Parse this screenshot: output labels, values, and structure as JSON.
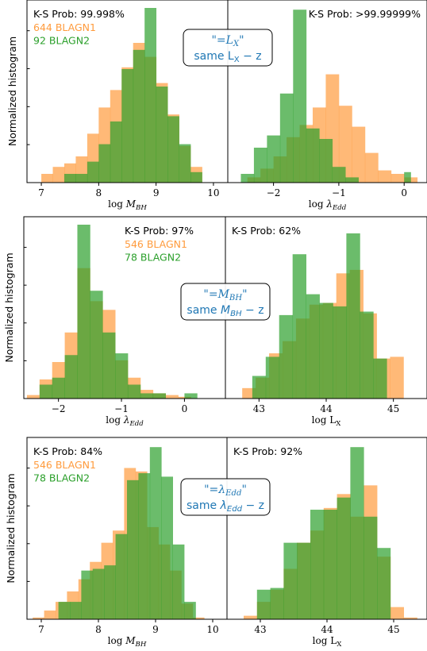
{
  "ylabel": "Normalized histogram",
  "colors": {
    "blagn1": "#ff9b3d",
    "blagn2": "#2ca02c",
    "overlap": "#a3a026",
    "axis": "#000000",
    "annot": "#1f77b4"
  },
  "chart_data": [
    {
      "type": "bar",
      "row": 1,
      "col": 1,
      "xlabel": "log M_BH",
      "xlim": [
        6.75,
        10.25
      ],
      "xticks": [
        7,
        8,
        9,
        10
      ],
      "ks_text": "K-S Prob: 99.998%",
      "ks_align": "left",
      "legend": [
        {
          "label": "644 BLAGN1",
          "color": "#ff9b3d"
        },
        {
          "label": "92 BLAGN2",
          "color": "#2ca02c"
        }
      ],
      "ylim": [
        0,
        1.0
      ],
      "series": [
        {
          "name": "BLAGN1",
          "color": "#ff9b3d",
          "bins": [
            6.8,
            7.0,
            7.2,
            7.4,
            7.6,
            7.8,
            8.0,
            8.2,
            8.4,
            8.6,
            8.8,
            9.0,
            9.2,
            9.4,
            9.6,
            9.8,
            10.0
          ],
          "values": [
            0.0,
            0.05,
            0.09,
            0.11,
            0.15,
            0.28,
            0.43,
            0.53,
            0.66,
            0.8,
            0.72,
            0.57,
            0.39,
            0.21,
            0.09,
            0.0
          ]
        },
        {
          "name": "BLAGN2",
          "color": "#2ca02c",
          "bins": [
            7.2,
            7.4,
            7.6,
            7.8,
            8.0,
            8.2,
            8.4,
            8.6,
            8.8,
            9.0,
            9.2,
            9.4,
            9.6,
            9.8
          ],
          "values": [
            0.0,
            0.05,
            0.05,
            0.12,
            0.22,
            0.35,
            0.65,
            0.76,
            1.0,
            0.55,
            0.38,
            0.22,
            0.06
          ]
        }
      ]
    },
    {
      "type": "bar",
      "row": 1,
      "col": 2,
      "xlabel": "log λ_Edd",
      "xlim": [
        -2.7,
        0.35
      ],
      "xticks": [
        -2,
        -1,
        0
      ],
      "ks_text": "K-S Prob: >99.99999%",
      "ks_align": "right",
      "legend": [],
      "ylim": [
        0,
        1.0
      ],
      "series": [
        {
          "name": "BLAGN1",
          "color": "#ff9b3d",
          "bins": [
            -2.6,
            -2.4,
            -2.2,
            -2.0,
            -1.8,
            -1.6,
            -1.4,
            -1.2,
            -1.0,
            -0.8,
            -0.6,
            -0.4,
            -0.2,
            0.0,
            0.2
          ],
          "values": [
            0.0,
            0.03,
            0.08,
            0.15,
            0.26,
            0.33,
            0.43,
            0.62,
            0.44,
            0.32,
            0.17,
            0.07,
            0.05,
            0.03
          ]
        },
        {
          "name": "BLAGN2",
          "color": "#2ca02c",
          "bins": [
            -2.5,
            -2.3,
            -2.1,
            -1.9,
            -1.7,
            -1.5,
            -1.3,
            -1.1,
            -0.9,
            -0.7,
            0.0,
            0.1
          ],
          "values": [
            0.05,
            0.2,
            0.27,
            0.51,
            0.99,
            0.31,
            0.25,
            0.09,
            0.03,
            0.0,
            0.06
          ]
        }
      ]
    },
    {
      "type": "bar",
      "row": 2,
      "col": 1,
      "xlabel": "log λ_Edd",
      "xlim": [
        -2.55,
        0.65
      ],
      "xticks": [
        -2,
        -1,
        0
      ],
      "ks_text": "K-S Prob: 97%",
      "ks_align": "leftmid",
      "legend": [
        {
          "label": "546 BLAGN1",
          "color": "#ff9b3d"
        },
        {
          "label": "78 BLAGN2",
          "color": "#2ca02c"
        }
      ],
      "ylim": [
        0,
        1.0
      ],
      "series": [
        {
          "name": "BLAGN1",
          "color": "#ff9b3d",
          "bins": [
            -2.5,
            -2.3,
            -2.1,
            -1.9,
            -1.7,
            -1.5,
            -1.3,
            -1.1,
            -0.9,
            -0.7,
            -0.5,
            -0.3,
            -0.1,
            0.1,
            0.3
          ],
          "values": [
            0.02,
            0.11,
            0.21,
            0.38,
            0.75,
            0.56,
            0.51,
            0.22,
            0.12,
            0.05,
            0.03,
            0.02,
            0.01,
            0.0
          ]
        },
        {
          "name": "BLAGN2",
          "color": "#2ca02c",
          "bins": [
            -2.3,
            -2.1,
            -1.9,
            -1.7,
            -1.5,
            -1.3,
            -1.1,
            -0.9,
            -0.7,
            -0.5,
            -0.3,
            0.0,
            0.2
          ],
          "values": [
            0.08,
            0.12,
            0.25,
            1.0,
            0.62,
            0.38,
            0.26,
            0.08,
            0.03,
            0.03,
            0.0,
            0.03
          ]
        }
      ]
    },
    {
      "type": "bar",
      "row": 2,
      "col": 2,
      "xlabel": "log L_X",
      "xlim": [
        42.5,
        45.5
      ],
      "xticks": [
        43,
        44,
        45
      ],
      "ks_text": "K-S Prob: 62%",
      "ks_align": "left",
      "legend": [],
      "ylim": [
        0,
        1.0
      ],
      "series": [
        {
          "name": "BLAGN1",
          "color": "#ff9b3d",
          "bins": [
            42.75,
            42.95,
            43.15,
            43.35,
            43.55,
            43.75,
            43.95,
            44.15,
            44.35,
            44.55,
            44.75,
            44.95,
            45.15
          ],
          "values": [
            0.06,
            0.12,
            0.26,
            0.33,
            0.46,
            0.54,
            0.55,
            0.72,
            0.74,
            0.49,
            0.23,
            0.24
          ]
        },
        {
          "name": "BLAGN2",
          "color": "#2ca02c",
          "bins": [
            42.9,
            43.1,
            43.3,
            43.5,
            43.7,
            43.9,
            44.1,
            44.3,
            44.5,
            44.7,
            44.9
          ],
          "values": [
            0.13,
            0.24,
            0.48,
            0.83,
            0.6,
            0.55,
            0.53,
            0.95,
            0.5,
            0.23
          ]
        }
      ]
    },
    {
      "type": "bar",
      "row": 3,
      "col": 1,
      "xlabel": "log M_BH",
      "xlim": [
        6.75,
        10.25
      ],
      "xticks": [
        7,
        8,
        9,
        10
      ],
      "ks_text": "K-S Prob: 84%",
      "ks_align": "left",
      "legend": [
        {
          "label": "546 BLAGN1",
          "color": "#ff9b3d"
        },
        {
          "label": "78 BLAGN2",
          "color": "#2ca02c"
        }
      ],
      "ylim": [
        0,
        1.0
      ],
      "series": [
        {
          "name": "BLAGN1",
          "color": "#ff9b3d",
          "bins": [
            6.85,
            7.05,
            7.25,
            7.45,
            7.65,
            7.85,
            8.05,
            8.25,
            8.45,
            8.65,
            8.85,
            9.05,
            9.25,
            9.45,
            9.65,
            9.85,
            10.05
          ],
          "values": [
            0.01,
            0.05,
            0.1,
            0.16,
            0.23,
            0.33,
            0.44,
            0.51,
            0.87,
            0.85,
            0.53,
            0.43,
            0.28,
            0.09,
            0.01,
            0.0
          ]
        },
        {
          "name": "BLAGN2",
          "color": "#2ca02c",
          "bins": [
            7.3,
            7.5,
            7.7,
            7.9,
            8.1,
            8.3,
            8.5,
            8.7,
            8.9,
            9.1,
            9.3,
            9.5,
            9.7
          ],
          "values": [
            0.1,
            0.1,
            0.28,
            0.29,
            0.31,
            0.49,
            0.8,
            0.84,
            0.99,
            0.82,
            0.43,
            0.1
          ]
        }
      ]
    },
    {
      "type": "bar",
      "row": 3,
      "col": 2,
      "xlabel": "log L_X",
      "xlim": [
        42.5,
        45.5
      ],
      "xticks": [
        43,
        44,
        45
      ],
      "ks_text": "K-S Prob: 92%",
      "ks_align": "left",
      "legend": [],
      "ylim": [
        0,
        1.0
      ],
      "series": [
        {
          "name": "BLAGN1",
          "color": "#ff9b3d",
          "bins": [
            42.75,
            42.95,
            43.15,
            43.35,
            43.55,
            43.75,
            43.95,
            44.15,
            44.35,
            44.55,
            44.75,
            44.95,
            45.15,
            45.35
          ],
          "values": [
            0.02,
            0.1,
            0.17,
            0.29,
            0.44,
            0.51,
            0.64,
            0.72,
            0.59,
            0.77,
            0.36,
            0.07,
            0.01
          ]
        },
        {
          "name": "BLAGN2",
          "color": "#2ca02c",
          "bins": [
            42.95,
            43.15,
            43.35,
            43.55,
            43.75,
            43.95,
            44.15,
            44.35,
            44.55,
            44.75,
            44.95
          ],
          "values": [
            0.17,
            0.18,
            0.44,
            0.44,
            0.63,
            0.63,
            0.7,
            0.99,
            0.59,
            0.41
          ]
        }
      ]
    }
  ],
  "annotations": [
    {
      "row": 1,
      "line1": "\"=L_X\"",
      "line2": "same L_X − z"
    },
    {
      "row": 2,
      "line1": "\"=M_BH\"",
      "line2": "same M_BH − z"
    },
    {
      "row": 3,
      "line1": "\"=λ_Edd\"",
      "line2": "same λ_Edd − z"
    }
  ]
}
